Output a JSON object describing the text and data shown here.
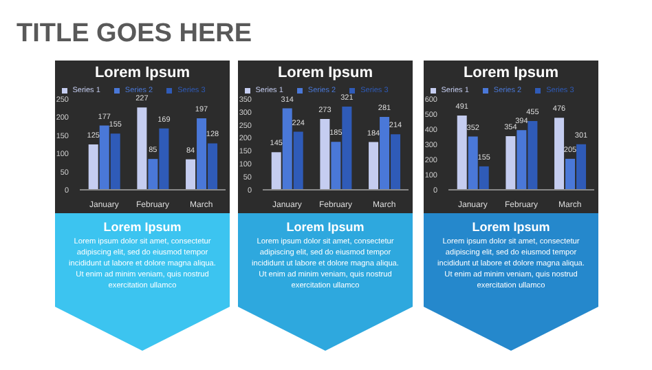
{
  "chart_data": [
    {
      "type": "other",
      "title": "TITLE GOES HERE"
    },
    {
      "type": "bar",
      "title": "Lorem Ipsum",
      "categories": [
        "January",
        "February",
        "March"
      ],
      "series": [
        {
          "name": "Series 1",
          "color": "#c5cdf0",
          "values": [
            125,
            227,
            84
          ]
        },
        {
          "name": "Series 2",
          "color": "#4a78d8",
          "values": [
            177,
            85,
            197
          ]
        },
        {
          "name": "Series 3",
          "color": "#2f5bb8",
          "values": [
            155,
            169,
            128
          ]
        }
      ],
      "ylim": [
        0,
        250
      ],
      "yticks": [
        0,
        50,
        100,
        150,
        200,
        250
      ],
      "data_labels": true,
      "legend": "top",
      "annotations": [
        "Lorem Ipsum",
        "Lorem ipsum dolor sit amet, consectetur adipiscing elit, sed do eiusmod tempor incididunt ut labore et dolore magna aliqua. Ut enim ad minim veniam, quis nostrud exercitation ullamco"
      ]
    },
    {
      "type": "bar",
      "title": "Lorem Ipsum",
      "categories": [
        "January",
        "February",
        "March"
      ],
      "series": [
        {
          "name": "Series 1",
          "color": "#c5cdf0",
          "values": [
            145,
            273,
            184
          ]
        },
        {
          "name": "Series 2",
          "color": "#4a78d8",
          "values": [
            314,
            185,
            281
          ]
        },
        {
          "name": "Series 3",
          "color": "#2f5bb8",
          "values": [
            224,
            321,
            214
          ]
        }
      ],
      "ylim": [
        0,
        350
      ],
      "yticks": [
        0,
        50,
        100,
        150,
        200,
        250,
        300,
        350
      ],
      "data_labels": true,
      "legend": "top",
      "annotations": [
        "Lorem Ipsum",
        "Lorem ipsum dolor sit amet, consectetur adipiscing elit, sed do eiusmod tempor incididunt ut labore et dolore magna aliqua. Ut enim ad minim veniam, quis nostrud exercitation ullamco"
      ]
    },
    {
      "type": "bar",
      "title": "Lorem Ipsum",
      "categories": [
        "January",
        "February",
        "March"
      ],
      "series": [
        {
          "name": "Series 1",
          "color": "#c5cdf0",
          "values": [
            491,
            354,
            476
          ]
        },
        {
          "name": "Series 2",
          "color": "#4a78d8",
          "values": [
            352,
            394,
            205
          ]
        },
        {
          "name": "Series 3",
          "color": "#2f5bb8",
          "values": [
            155,
            455,
            301
          ]
        }
      ],
      "ylim": [
        0,
        600
      ],
      "yticks": [
        0,
        100,
        200,
        300,
        400,
        500,
        600
      ],
      "data_labels": true,
      "legend": "top",
      "annotations": [
        "Lorem Ipsum",
        "Lorem ipsum dolor sit amet, consectetur adipiscing elit, sed do eiusmod tempor incididunt ut labore et dolore magna aliqua. Ut enim ad minim veniam, quis nostrud exercitation ullamco"
      ]
    }
  ]
}
